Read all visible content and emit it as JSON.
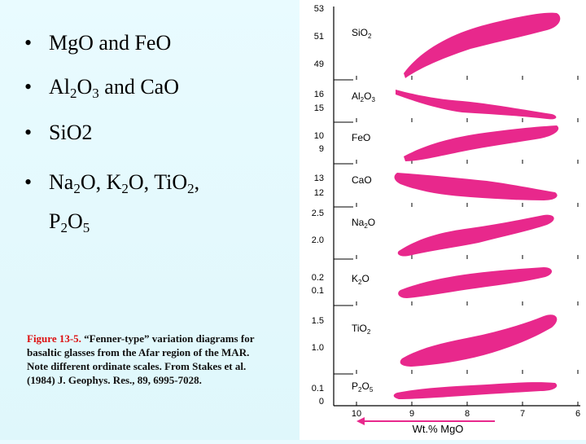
{
  "bullets": {
    "b1": {
      "a": "Mg",
      "b": "O and Fe",
      "c": "O"
    },
    "b2": {
      "a": "Al",
      "s1": "2",
      "b": "O",
      "s2": "3",
      "c": " and Ca",
      "d": "O"
    },
    "b3": {
      "a": "Si",
      "b": "O2"
    },
    "b4": {
      "a": "Na",
      "s1": "2",
      "b": "O, K",
      "s2": "2",
      "c": "O, Ti",
      "d": "O",
      "s3": "2",
      "e": ",",
      "f": "P",
      "s4": "2",
      "g": "O",
      "s5": "5"
    }
  },
  "caption": {
    "figure_label": "Figure 13-5.",
    "text": " “Fenner-type” variation diagrams for basaltic glasses from the Afar region of the MAR. Note different ordinate scales. From Stakes et al. (1984) J. Geophys. Res., 89, 6995-7028."
  },
  "bullet_symbol": "•",
  "chart_data": {
    "type": "area",
    "x_axis": {
      "label": "Wt.% MgO",
      "ticks": [
        "10",
        "9",
        "8",
        "7",
        "6"
      ],
      "range": [
        10,
        6
      ],
      "direction": "decreasing to the right"
    },
    "panels": [
      {
        "name": "SiO2",
        "label_main": "SiO",
        "label_sub": "2",
        "ticks": [
          "53",
          "51",
          "49"
        ],
        "range": [
          49,
          53
        ]
      },
      {
        "name": "Al2O3",
        "label_main": "Al",
        "label_sub": "2",
        "label_main2": "O",
        "label_sub2": "3",
        "ticks": [
          "16",
          "15"
        ],
        "range": [
          14.5,
          16.5
        ]
      },
      {
        "name": "FeO",
        "label_main": "FeO",
        "ticks": [
          "10",
          "9"
        ],
        "range": [
          8.5,
          10.5
        ]
      },
      {
        "name": "CaO",
        "label_main": "CaO",
        "ticks": [
          "13",
          "12"
        ],
        "range": [
          11.5,
          13.5
        ]
      },
      {
        "name": "Na2O",
        "label_main": "Na",
        "label_sub": "2",
        "label_main2": "O",
        "ticks": [
          "2.5",
          "2.0"
        ],
        "range": [
          1.9,
          2.6
        ]
      },
      {
        "name": "K2O",
        "label_main": "K",
        "label_sub": "2",
        "label_main2": "O",
        "ticks": [
          "0.2",
          "0.1"
        ],
        "range": [
          0.05,
          0.25
        ]
      },
      {
        "name": "TiO2",
        "label_main": "TiO",
        "label_sub": "2",
        "ticks": [
          "1.5",
          "1.0"
        ],
        "range": [
          0.9,
          1.6
        ]
      },
      {
        "name": "P2O5",
        "label_main": "P",
        "label_sub": "2",
        "label_main2": "O",
        "label_sub2": "5",
        "ticks": [
          "0.1",
          "0"
        ],
        "range": [
          0,
          0.15
        ]
      }
    ],
    "field_color": "#e8288c",
    "arrow_color": "#e8288c"
  }
}
